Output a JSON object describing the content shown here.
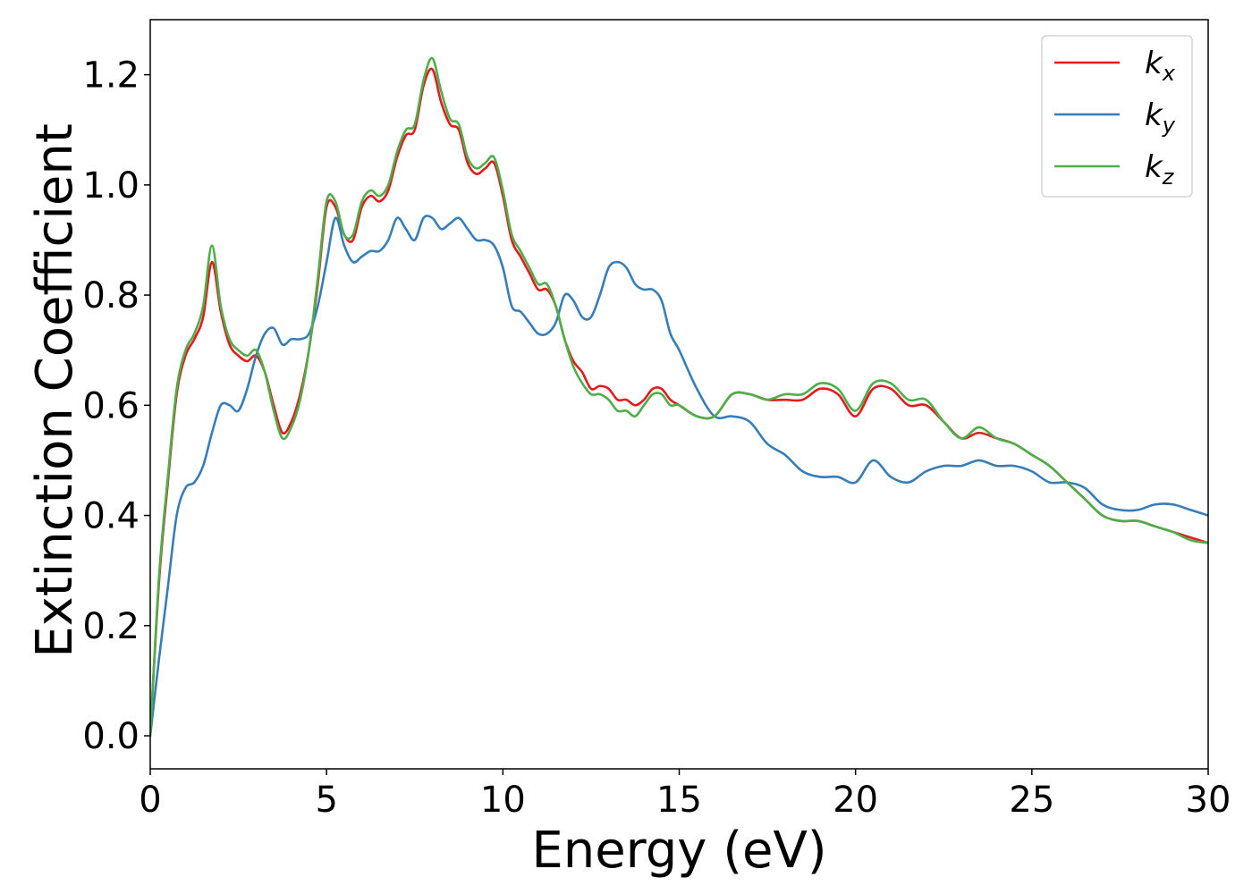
{
  "chart_data": {
    "type": "line",
    "title": "",
    "xlabel": "Energy (eV)",
    "ylabel": "Extinction Coefficient",
    "xlim": [
      0,
      30
    ],
    "ylim": [
      -0.06,
      1.3
    ],
    "xticks": [
      0,
      5,
      10,
      15,
      20,
      25,
      30
    ],
    "xtick_labels": [
      "0",
      "5",
      "10",
      "15",
      "20",
      "25",
      "30"
    ],
    "yticks": [
      0.0,
      0.2,
      0.4,
      0.6,
      0.8,
      1.0,
      1.2
    ],
    "ytick_labels": [
      "0.0",
      "0.2",
      "0.4",
      "0.6",
      "0.8",
      "1.0",
      "1.2"
    ],
    "grid": false,
    "legend_position": "top-right",
    "series": [
      {
        "name": "kx",
        "legend_main": "k",
        "legend_sub": "x",
        "color": "#e41a1c",
        "x": [
          0.0,
          0.25,
          0.5,
          0.75,
          1.0,
          1.25,
          1.5,
          1.75,
          2.0,
          2.25,
          2.5,
          2.75,
          3.0,
          3.25,
          3.5,
          3.75,
          4.0,
          4.25,
          4.5,
          4.75,
          5.0,
          5.25,
          5.5,
          5.75,
          6.0,
          6.25,
          6.5,
          6.75,
          7.0,
          7.25,
          7.5,
          7.75,
          8.0,
          8.25,
          8.5,
          8.75,
          9.0,
          9.25,
          9.5,
          9.75,
          10.0,
          10.25,
          10.5,
          10.75,
          11.0,
          11.25,
          11.5,
          11.75,
          12.0,
          12.25,
          12.5,
          12.75,
          13.0,
          13.25,
          13.5,
          13.75,
          14.0,
          14.25,
          14.5,
          14.75,
          15.0,
          15.5,
          16.0,
          16.5,
          17.0,
          17.5,
          18.0,
          18.5,
          19.0,
          19.5,
          20.0,
          20.5,
          21.0,
          21.5,
          22.0,
          22.5,
          23.0,
          23.5,
          24.0,
          24.5,
          25.0,
          25.5,
          26.0,
          26.5,
          27.0,
          27.5,
          28.0,
          28.5,
          29.0,
          29.5,
          30.0
        ],
        "y": [
          0.0,
          0.28,
          0.46,
          0.62,
          0.69,
          0.72,
          0.76,
          0.86,
          0.77,
          0.71,
          0.69,
          0.68,
          0.69,
          0.66,
          0.6,
          0.55,
          0.57,
          0.62,
          0.7,
          0.82,
          0.96,
          0.96,
          0.91,
          0.9,
          0.96,
          0.98,
          0.97,
          0.99,
          1.05,
          1.09,
          1.1,
          1.18,
          1.21,
          1.15,
          1.11,
          1.1,
          1.04,
          1.02,
          1.03,
          1.04,
          0.98,
          0.9,
          0.87,
          0.84,
          0.81,
          0.81,
          0.78,
          0.72,
          0.68,
          0.66,
          0.63,
          0.635,
          0.63,
          0.61,
          0.61,
          0.6,
          0.61,
          0.63,
          0.63,
          0.61,
          0.6,
          0.58,
          0.58,
          0.62,
          0.62,
          0.61,
          0.61,
          0.61,
          0.63,
          0.62,
          0.58,
          0.63,
          0.63,
          0.6,
          0.6,
          0.57,
          0.54,
          0.55,
          0.54,
          0.53,
          0.51,
          0.49,
          0.46,
          0.43,
          0.4,
          0.39,
          0.39,
          0.38,
          0.37,
          0.36,
          0.35
        ]
      },
      {
        "name": "ky",
        "legend_main": "k",
        "legend_sub": "y",
        "color": "#377eb8",
        "x": [
          0.0,
          0.25,
          0.5,
          0.75,
          1.0,
          1.25,
          1.5,
          1.75,
          2.0,
          2.25,
          2.5,
          2.75,
          3.0,
          3.25,
          3.5,
          3.75,
          4.0,
          4.25,
          4.5,
          4.75,
          5.0,
          5.25,
          5.5,
          5.75,
          6.0,
          6.25,
          6.5,
          6.75,
          7.0,
          7.25,
          7.5,
          7.75,
          8.0,
          8.25,
          8.5,
          8.75,
          9.0,
          9.25,
          9.5,
          9.75,
          10.0,
          10.25,
          10.5,
          10.75,
          11.0,
          11.25,
          11.5,
          11.75,
          12.0,
          12.25,
          12.5,
          12.75,
          13.0,
          13.25,
          13.5,
          13.75,
          14.0,
          14.25,
          14.5,
          14.75,
          15.0,
          15.5,
          16.0,
          16.5,
          17.0,
          17.5,
          18.0,
          18.5,
          19.0,
          19.5,
          20.0,
          20.5,
          21.0,
          21.5,
          22.0,
          22.5,
          23.0,
          23.5,
          24.0,
          24.5,
          25.0,
          25.5,
          26.0,
          26.5,
          27.0,
          27.5,
          28.0,
          28.5,
          29.0,
          29.5,
          30.0
        ],
        "y": [
          0.0,
          0.14,
          0.27,
          0.4,
          0.45,
          0.46,
          0.49,
          0.55,
          0.6,
          0.6,
          0.59,
          0.63,
          0.69,
          0.73,
          0.74,
          0.71,
          0.72,
          0.72,
          0.73,
          0.78,
          0.86,
          0.94,
          0.89,
          0.86,
          0.87,
          0.88,
          0.88,
          0.9,
          0.94,
          0.92,
          0.9,
          0.94,
          0.94,
          0.92,
          0.93,
          0.94,
          0.92,
          0.9,
          0.9,
          0.89,
          0.85,
          0.78,
          0.77,
          0.75,
          0.73,
          0.73,
          0.75,
          0.8,
          0.79,
          0.76,
          0.76,
          0.8,
          0.85,
          0.86,
          0.85,
          0.82,
          0.81,
          0.81,
          0.79,
          0.73,
          0.7,
          0.63,
          0.58,
          0.58,
          0.57,
          0.53,
          0.51,
          0.48,
          0.47,
          0.47,
          0.46,
          0.5,
          0.47,
          0.46,
          0.48,
          0.49,
          0.49,
          0.5,
          0.49,
          0.49,
          0.48,
          0.46,
          0.46,
          0.45,
          0.42,
          0.41,
          0.41,
          0.42,
          0.42,
          0.41,
          0.4
        ]
      },
      {
        "name": "kz",
        "legend_main": "k",
        "legend_sub": "z",
        "color": "#4daf4a",
        "x": [
          0.0,
          0.25,
          0.5,
          0.75,
          1.0,
          1.25,
          1.5,
          1.75,
          2.0,
          2.25,
          2.5,
          2.75,
          3.0,
          3.25,
          3.5,
          3.75,
          4.0,
          4.25,
          4.5,
          4.75,
          5.0,
          5.25,
          5.5,
          5.75,
          6.0,
          6.25,
          6.5,
          6.75,
          7.0,
          7.25,
          7.5,
          7.75,
          8.0,
          8.25,
          8.5,
          8.75,
          9.0,
          9.25,
          9.5,
          9.75,
          10.0,
          10.25,
          10.5,
          10.75,
          11.0,
          11.25,
          11.5,
          11.75,
          12.0,
          12.25,
          12.5,
          12.75,
          13.0,
          13.25,
          13.5,
          13.75,
          14.0,
          14.25,
          14.5,
          14.75,
          15.0,
          15.5,
          16.0,
          16.5,
          17.0,
          17.5,
          18.0,
          18.5,
          19.0,
          19.5,
          20.0,
          20.5,
          21.0,
          21.5,
          22.0,
          22.5,
          23.0,
          23.5,
          24.0,
          24.5,
          25.0,
          25.5,
          26.0,
          26.5,
          27.0,
          27.5,
          28.0,
          28.5,
          29.0,
          29.5,
          30.0
        ],
        "y": [
          0.0,
          0.29,
          0.47,
          0.63,
          0.7,
          0.73,
          0.78,
          0.89,
          0.78,
          0.72,
          0.7,
          0.69,
          0.7,
          0.66,
          0.59,
          0.54,
          0.56,
          0.61,
          0.7,
          0.83,
          0.97,
          0.97,
          0.91,
          0.91,
          0.97,
          0.99,
          0.98,
          1.0,
          1.06,
          1.1,
          1.11,
          1.19,
          1.23,
          1.17,
          1.12,
          1.11,
          1.05,
          1.03,
          1.04,
          1.05,
          0.99,
          0.91,
          0.88,
          0.85,
          0.82,
          0.82,
          0.78,
          0.72,
          0.67,
          0.64,
          0.62,
          0.62,
          0.61,
          0.59,
          0.59,
          0.58,
          0.6,
          0.62,
          0.62,
          0.6,
          0.6,
          0.58,
          0.58,
          0.62,
          0.62,
          0.61,
          0.62,
          0.62,
          0.64,
          0.63,
          0.59,
          0.64,
          0.64,
          0.61,
          0.61,
          0.57,
          0.54,
          0.56,
          0.54,
          0.53,
          0.51,
          0.49,
          0.46,
          0.43,
          0.4,
          0.39,
          0.39,
          0.38,
          0.37,
          0.355,
          0.35
        ]
      }
    ]
  }
}
